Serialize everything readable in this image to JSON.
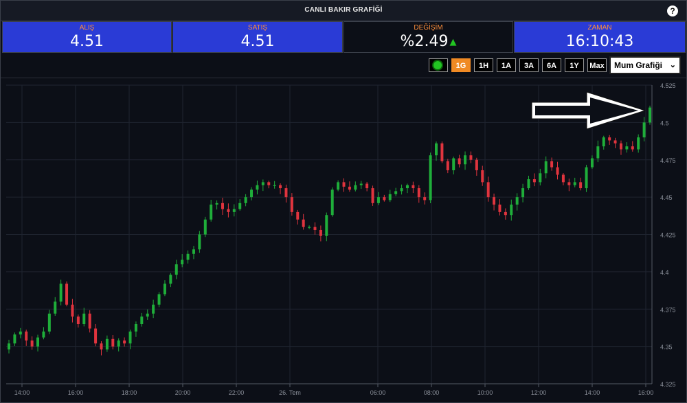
{
  "header": {
    "title": "CANLI BAKIR GRAFİĞİ",
    "help_icon": "?"
  },
  "quotes": {
    "bid": {
      "label": "ALIŞ",
      "value": "4.51"
    },
    "ask": {
      "label": "SATIŞ",
      "value": "4.51"
    },
    "change": {
      "label": "DEĞİŞİM",
      "value": "%2.49",
      "direction": "up",
      "arrow": "▲"
    },
    "time": {
      "label": "ZAMAN",
      "value": "16:10:43"
    }
  },
  "toolbar": {
    "ranges": [
      "1G",
      "1H",
      "1A",
      "3A",
      "6A",
      "1Y",
      "Max"
    ],
    "active_range": "1G",
    "chart_type": "Mum Grafiği",
    "chart_type_chevron": "⌄"
  },
  "colors": {
    "up": "#1fae3a",
    "down": "#e0343e",
    "accent": "#f08a24",
    "header_blue": "#2a3bd6"
  },
  "chart_data": {
    "type": "candlestick",
    "y_ticks": [
      "4.525",
      "4.5",
      "4.475",
      "4.45",
      "4.425",
      "4.4",
      "4.375",
      "4.35",
      "4.325"
    ],
    "ylim": [
      4.325,
      4.525
    ],
    "x_ticks": [
      "14:00",
      "16:00",
      "18:00",
      "20:00",
      "22:00",
      "26. Tem",
      "06:00",
      "08:00",
      "10:00",
      "12:00",
      "14:00",
      "16:00"
    ],
    "grid": true,
    "annotation": "arrow pointing to latest candle",
    "close_series": [
      4.352,
      4.358,
      4.36,
      4.354,
      4.35,
      4.356,
      4.36,
      4.372,
      4.38,
      4.392,
      4.378,
      4.37,
      4.365,
      4.372,
      4.362,
      4.352,
      4.348,
      4.355,
      4.35,
      4.354,
      4.352,
      4.36,
      4.365,
      4.37,
      4.372,
      4.378,
      4.385,
      4.392,
      4.398,
      4.405,
      4.408,
      4.412,
      4.415,
      4.425,
      4.435,
      4.445,
      4.446,
      4.442,
      4.44,
      4.442,
      4.446,
      4.45,
      4.455,
      4.458,
      4.46,
      4.458,
      4.458,
      4.456,
      4.45,
      4.44,
      4.435,
      4.43,
      4.43,
      4.428,
      4.424,
      4.438,
      4.455,
      4.46,
      4.457,
      4.455,
      4.458,
      4.459,
      4.456,
      4.446,
      4.45,
      4.448,
      4.452,
      4.454,
      4.456,
      4.458,
      4.456,
      4.45,
      4.448,
      4.478,
      4.486,
      4.474,
      4.468,
      4.476,
      4.472,
      4.478,
      4.475,
      4.468,
      4.46,
      4.45,
      4.445,
      4.44,
      4.438,
      4.445,
      4.45,
      4.456,
      4.462,
      4.46,
      4.466,
      4.474,
      4.47,
      4.465,
      4.46,
      4.458,
      4.46,
      4.456,
      4.47,
      4.476,
      4.484,
      4.49,
      4.488,
      4.486,
      4.482,
      4.484,
      4.482,
      4.49,
      4.5,
      4.51
    ]
  }
}
